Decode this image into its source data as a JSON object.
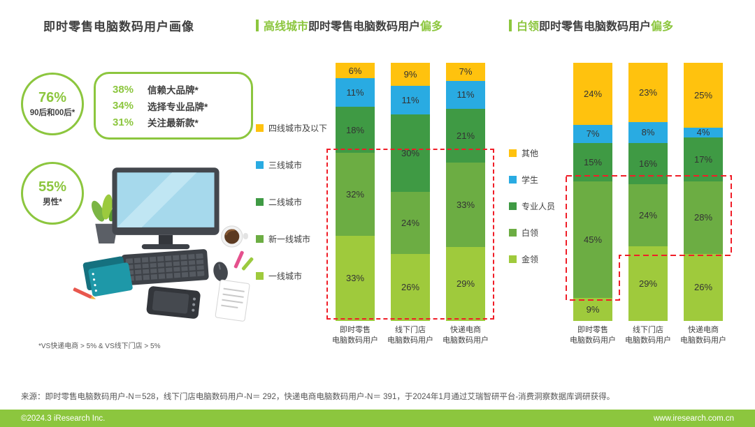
{
  "page": {
    "title": "即时零售电脑数码用户画像",
    "footnote": "*VS快递电商 > 5% & VS线下门店 > 5%",
    "source": "来源：即时零售电脑数码用户-N＝528，线下门店电脑数码用户-N＝ 292，快递电商电脑数码用户-N＝ 391，于2024年1月通过艾瑞智研平台-消费洞察数据库调研获得。",
    "footer": {
      "left": "©2024.3 iResearch Inc.",
      "right": "www.iresearch.com.cn"
    }
  },
  "profile": {
    "circles": [
      {
        "value": "76%",
        "label": "90后和00后*"
      },
      {
        "value": "55%",
        "label": "男性*"
      }
    ],
    "facts": [
      {
        "value": "38%",
        "label": "信赖大品牌*"
      },
      {
        "value": "34%",
        "label": "选择专业品牌*"
      },
      {
        "value": "31%",
        "label": "关注最新款*"
      }
    ]
  },
  "colors": {
    "accent_green": "#8cc63e",
    "dark_text": "#3f3f3f",
    "highlight_red": "#f01e28",
    "series_palette": [
      "#ffc20e",
      "#29abe2",
      "#3f9a44",
      "#6cad43",
      "#9fca3c"
    ]
  },
  "chart_data": [
    {
      "type": "bar",
      "stacked": true,
      "title": "高线城市即时零售电脑数码用户偏多",
      "title_segments": [
        {
          "text": "高线城市",
          "accent": true
        },
        {
          "text": "即时零售电脑数码用户",
          "accent": false
        },
        {
          "text": "偏多",
          "accent": true
        }
      ],
      "unit": "%",
      "ylim": [
        0,
        100
      ],
      "legend_position": "left",
      "stack_order": "top-to-bottom",
      "categories": [
        [
          "即时零售",
          "电脑数码用户"
        ],
        [
          "线下门店",
          "电脑数码用户"
        ],
        [
          "快递电商",
          "电脑数码用户"
        ]
      ],
      "series": [
        {
          "name": "四线城市及以下",
          "values": [
            6,
            9,
            7
          ]
        },
        {
          "name": "三线城市",
          "values": [
            11,
            11,
            11
          ]
        },
        {
          "name": "二线城市",
          "values": [
            18,
            30,
            21
          ]
        },
        {
          "name": "新一线城市",
          "values": [
            32,
            24,
            33
          ]
        },
        {
          "name": "一线城市",
          "values": [
            33,
            26,
            29
          ]
        }
      ],
      "highlight": "red dashed box around 一线城市 and 新一线城市 segments of all three bars"
    },
    {
      "type": "bar",
      "stacked": true,
      "title": "白领即时零售电脑数码用户偏多",
      "title_segments": [
        {
          "text": "白领",
          "accent": true
        },
        {
          "text": "即时零售电脑数码用户",
          "accent": false
        },
        {
          "text": "偏多",
          "accent": true
        }
      ],
      "unit": "%",
      "ylim": [
        0,
        100
      ],
      "legend_position": "left",
      "stack_order": "top-to-bottom",
      "categories": [
        [
          "即时零售",
          "电脑数码用户"
        ],
        [
          "线下门店",
          "电脑数码用户"
        ],
        [
          "快递电商",
          "电脑数码用户"
        ]
      ],
      "series": [
        {
          "name": "其他",
          "values": [
            24,
            23,
            25
          ]
        },
        {
          "name": "学生",
          "values": [
            7,
            8,
            4
          ]
        },
        {
          "name": "专业人员",
          "values": [
            15,
            16,
            17
          ]
        },
        {
          "name": "白领",
          "values": [
            45,
            24,
            28
          ]
        },
        {
          "name": "金领",
          "values": [
            9,
            29,
            26
          ]
        }
      ],
      "highlight": "red dashed stepped box around 白领 segments of all three bars"
    }
  ]
}
